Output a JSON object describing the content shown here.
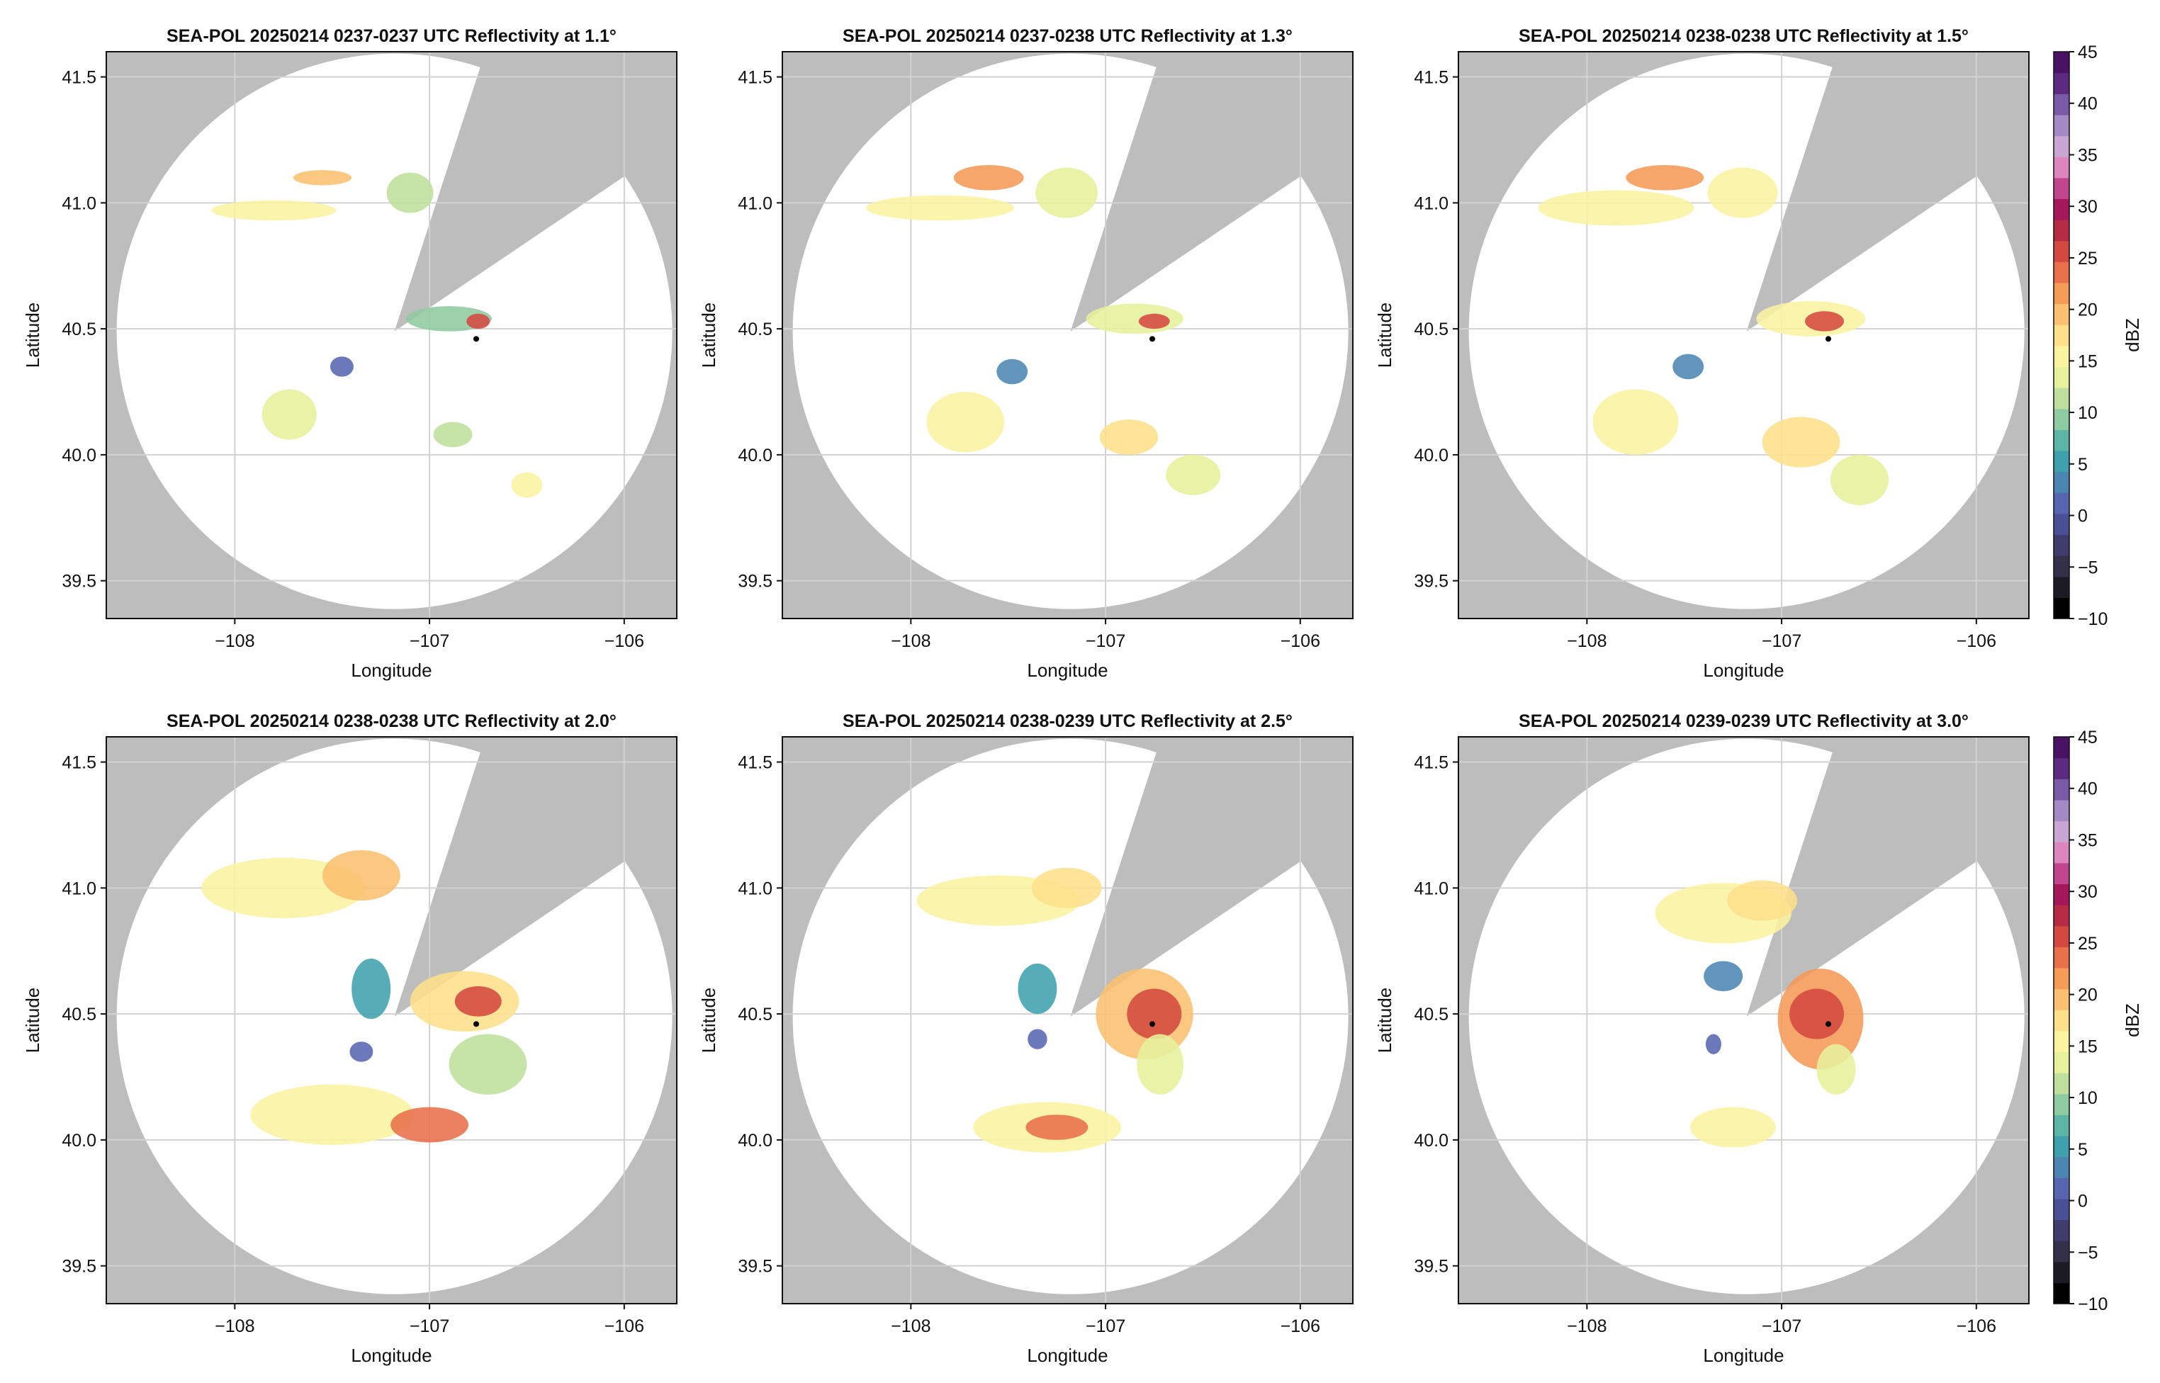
{
  "figure": {
    "colorbar": {
      "label": "dBZ",
      "range": [
        -10,
        45
      ],
      "ticks": [
        "−10",
        "−5",
        "0",
        "5",
        "10",
        "15",
        "20",
        "25",
        "30",
        "35",
        "40",
        "45"
      ],
      "colors": [
        "#000000",
        "#1c1a24",
        "#35304a",
        "#3e3d6e",
        "#4b4f96",
        "#5665b0",
        "#4b86b2",
        "#3fa1ad",
        "#5bb6a5",
        "#8fcba0",
        "#bfe09c",
        "#e6f19c",
        "#fbf3a0",
        "#fde08a",
        "#fbc06f",
        "#f59a57",
        "#e8704a",
        "#d4493f",
        "#b72a44",
        "#a4175a",
        "#c2468d",
        "#dd86bd",
        "#c9a6d2",
        "#a48ac4",
        "#7a5aa7",
        "#5c2a80",
        "#4a1264"
      ]
    },
    "background": {
      "outside_color": "#bdbdbd",
      "coverage_color": "#ffffff"
    }
  },
  "chart_data": [
    {
      "type": "heatmap",
      "title": "SEA-POL 20250214 0237-0237 UTC Reflectivity at 1.1°",
      "xlabel": "Longitude",
      "ylabel": "Latitude",
      "xlim": [
        -108.66,
        -105.73
      ],
      "ylim": [
        39.35,
        41.6
      ],
      "xticks": [
        "−108",
        "−107",
        "−106"
      ],
      "yticks": [
        "39.5",
        "40.0",
        "40.5",
        "41.0",
        "41.5"
      ],
      "grid": true,
      "radar_center": [
        -107.18,
        40.49
      ],
      "marker": [
        -106.76,
        40.46
      ],
      "echoes": [
        {
          "lon": -107.8,
          "lat": 40.97,
          "rlon": 0.32,
          "rlat": 0.04,
          "dbz": 15
        },
        {
          "lon": -107.55,
          "lat": 41.1,
          "rlon": 0.15,
          "rlat": 0.03,
          "dbz": 20
        },
        {
          "lon": -107.1,
          "lat": 41.04,
          "rlon": 0.12,
          "rlat": 0.08,
          "dbz": 12
        },
        {
          "lon": -106.9,
          "lat": 40.54,
          "rlon": 0.22,
          "rlat": 0.05,
          "dbz": 10
        },
        {
          "lon": -106.75,
          "lat": 40.53,
          "rlon": 0.06,
          "rlat": 0.03,
          "dbz": 25
        },
        {
          "lon": -107.72,
          "lat": 40.16,
          "rlon": 0.14,
          "rlat": 0.1,
          "dbz": 13
        },
        {
          "lon": -107.45,
          "lat": 40.35,
          "rlon": 0.06,
          "rlat": 0.04,
          "dbz": 2
        },
        {
          "lon": -106.88,
          "lat": 40.08,
          "rlon": 0.1,
          "rlat": 0.05,
          "dbz": 12
        },
        {
          "lon": -106.5,
          "lat": 39.88,
          "rlon": 0.08,
          "rlat": 0.05,
          "dbz": 15
        }
      ]
    },
    {
      "type": "heatmap",
      "title": "SEA-POL 20250214 0237-0238 UTC Reflectivity at 1.3°",
      "xlabel": "Longitude",
      "ylabel": "Latitude",
      "xlim": [
        -108.66,
        -105.73
      ],
      "ylim": [
        39.35,
        41.6
      ],
      "xticks": [
        "−108",
        "−107",
        "−106"
      ],
      "yticks": [
        "39.5",
        "40.0",
        "40.5",
        "41.0",
        "41.5"
      ],
      "grid": true,
      "radar_center": [
        -107.18,
        40.49
      ],
      "marker": [
        -106.76,
        40.46
      ],
      "echoes": [
        {
          "lon": -107.85,
          "lat": 40.98,
          "rlon": 0.38,
          "rlat": 0.05,
          "dbz": 16
        },
        {
          "lon": -107.6,
          "lat": 41.1,
          "rlon": 0.18,
          "rlat": 0.05,
          "dbz": 22
        },
        {
          "lon": -107.2,
          "lat": 41.04,
          "rlon": 0.16,
          "rlat": 0.1,
          "dbz": 14
        },
        {
          "lon": -106.85,
          "lat": 40.54,
          "rlon": 0.25,
          "rlat": 0.06,
          "dbz": 14
        },
        {
          "lon": -106.75,
          "lat": 40.53,
          "rlon": 0.08,
          "rlat": 0.03,
          "dbz": 26
        },
        {
          "lon": -107.72,
          "lat": 40.13,
          "rlon": 0.2,
          "rlat": 0.12,
          "dbz": 15
        },
        {
          "lon": -107.48,
          "lat": 40.33,
          "rlon": 0.08,
          "rlat": 0.05,
          "dbz": 3
        },
        {
          "lon": -106.88,
          "lat": 40.07,
          "rlon": 0.15,
          "rlat": 0.07,
          "dbz": 18
        },
        {
          "lon": -106.55,
          "lat": 39.92,
          "rlon": 0.14,
          "rlat": 0.08,
          "dbz": 14
        }
      ]
    },
    {
      "type": "heatmap",
      "title": "SEA-POL 20250214 0238-0238 UTC Reflectivity at 1.5°",
      "xlabel": "Longitude",
      "ylabel": "Latitude",
      "xlim": [
        -108.66,
        -105.73
      ],
      "ylim": [
        39.35,
        41.6
      ],
      "xticks": [
        "−108",
        "−107",
        "−106"
      ],
      "yticks": [
        "39.5",
        "40.0",
        "40.5",
        "41.0",
        "41.5"
      ],
      "grid": true,
      "radar_center": [
        -107.18,
        40.49
      ],
      "marker": [
        -106.76,
        40.46
      ],
      "echoes": [
        {
          "lon": -107.85,
          "lat": 40.98,
          "rlon": 0.4,
          "rlat": 0.07,
          "dbz": 16
        },
        {
          "lon": -107.6,
          "lat": 41.1,
          "rlon": 0.2,
          "rlat": 0.05,
          "dbz": 22
        },
        {
          "lon": -107.2,
          "lat": 41.04,
          "rlon": 0.18,
          "rlat": 0.1,
          "dbz": 15
        },
        {
          "lon": -106.85,
          "lat": 40.54,
          "rlon": 0.28,
          "rlat": 0.07,
          "dbz": 16
        },
        {
          "lon": -106.78,
          "lat": 40.53,
          "rlon": 0.1,
          "rlat": 0.04,
          "dbz": 26
        },
        {
          "lon": -107.75,
          "lat": 40.13,
          "rlon": 0.22,
          "rlat": 0.13,
          "dbz": 15
        },
        {
          "lon": -107.48,
          "lat": 40.35,
          "rlon": 0.08,
          "rlat": 0.05,
          "dbz": 3
        },
        {
          "lon": -106.9,
          "lat": 40.05,
          "rlon": 0.2,
          "rlat": 0.1,
          "dbz": 18
        },
        {
          "lon": -106.6,
          "lat": 39.9,
          "rlon": 0.15,
          "rlat": 0.1,
          "dbz": 14
        }
      ]
    },
    {
      "type": "heatmap",
      "title": "SEA-POL 20250214 0238-0238 UTC Reflectivity at 2.0°",
      "xlabel": "Longitude",
      "ylabel": "Latitude",
      "xlim": [
        -108.66,
        -105.73
      ],
      "ylim": [
        39.35,
        41.6
      ],
      "xticks": [
        "−108",
        "−107",
        "−106"
      ],
      "yticks": [
        "39.5",
        "40.0",
        "40.5",
        "41.0",
        "41.5"
      ],
      "grid": true,
      "radar_center": [
        -107.18,
        40.49
      ],
      "marker": [
        -106.76,
        40.46
      ],
      "echoes": [
        {
          "lon": -107.75,
          "lat": 41.0,
          "rlon": 0.42,
          "rlat": 0.12,
          "dbz": 16
        },
        {
          "lon": -107.35,
          "lat": 41.05,
          "rlon": 0.2,
          "rlat": 0.1,
          "dbz": 20
        },
        {
          "lon": -106.82,
          "lat": 40.55,
          "rlon": 0.28,
          "rlat": 0.12,
          "dbz": 18
        },
        {
          "lon": -106.75,
          "lat": 40.55,
          "rlon": 0.12,
          "rlat": 0.06,
          "dbz": 26
        },
        {
          "lon": -106.7,
          "lat": 40.3,
          "rlon": 0.2,
          "rlat": 0.12,
          "dbz": 12
        },
        {
          "lon": -107.5,
          "lat": 40.1,
          "rlon": 0.42,
          "rlat": 0.12,
          "dbz": 15
        },
        {
          "lon": -107.0,
          "lat": 40.06,
          "rlon": 0.2,
          "rlat": 0.07,
          "dbz": 24
        },
        {
          "lon": -107.3,
          "lat": 40.6,
          "rlon": 0.1,
          "rlat": 0.12,
          "dbz": 5
        },
        {
          "lon": -107.35,
          "lat": 40.35,
          "rlon": 0.06,
          "rlat": 0.04,
          "dbz": 2
        }
      ]
    },
    {
      "type": "heatmap",
      "title": "SEA-POL 20250214 0238-0239 UTC Reflectivity at 2.5°",
      "xlabel": "Longitude",
      "ylabel": "Latitude",
      "xlim": [
        -108.66,
        -105.73
      ],
      "ylim": [
        39.35,
        41.6
      ],
      "xticks": [
        "−108",
        "−107",
        "−106"
      ],
      "yticks": [
        "39.5",
        "40.0",
        "40.5",
        "41.0",
        "41.5"
      ],
      "grid": true,
      "radar_center": [
        -107.18,
        40.49
      ],
      "marker": [
        -106.76,
        40.46
      ],
      "echoes": [
        {
          "lon": -107.55,
          "lat": 40.95,
          "rlon": 0.42,
          "rlat": 0.1,
          "dbz": 15
        },
        {
          "lon": -107.2,
          "lat": 41.0,
          "rlon": 0.18,
          "rlat": 0.08,
          "dbz": 18
        },
        {
          "lon": -106.8,
          "lat": 40.5,
          "rlon": 0.25,
          "rlat": 0.18,
          "dbz": 20
        },
        {
          "lon": -106.75,
          "lat": 40.5,
          "rlon": 0.14,
          "rlat": 0.1,
          "dbz": 26
        },
        {
          "lon": -106.72,
          "lat": 40.3,
          "rlon": 0.12,
          "rlat": 0.12,
          "dbz": 14
        },
        {
          "lon": -107.3,
          "lat": 40.05,
          "rlon": 0.38,
          "rlat": 0.1,
          "dbz": 16
        },
        {
          "lon": -107.25,
          "lat": 40.05,
          "rlon": 0.16,
          "rlat": 0.05,
          "dbz": 24
        },
        {
          "lon": -107.35,
          "lat": 40.6,
          "rlon": 0.1,
          "rlat": 0.1,
          "dbz": 5
        },
        {
          "lon": -107.35,
          "lat": 40.4,
          "rlon": 0.05,
          "rlat": 0.04,
          "dbz": 2
        }
      ]
    },
    {
      "type": "heatmap",
      "title": "SEA-POL 20250214 0239-0239 UTC Reflectivity at 3.0°",
      "xlabel": "Longitude",
      "ylabel": "Latitude",
      "xlim": [
        -108.66,
        -105.73
      ],
      "ylim": [
        39.35,
        41.6
      ],
      "xticks": [
        "−108",
        "−107",
        "−106"
      ],
      "yticks": [
        "39.5",
        "40.0",
        "40.5",
        "41.0",
        "41.5"
      ],
      "grid": true,
      "radar_center": [
        -107.18,
        40.49
      ],
      "marker": [
        -106.76,
        40.46
      ],
      "echoes": [
        {
          "lon": -107.3,
          "lat": 40.9,
          "rlon": 0.35,
          "rlat": 0.12,
          "dbz": 15
        },
        {
          "lon": -107.1,
          "lat": 40.95,
          "rlon": 0.18,
          "rlat": 0.08,
          "dbz": 18
        },
        {
          "lon": -106.8,
          "lat": 40.48,
          "rlon": 0.22,
          "rlat": 0.2,
          "dbz": 22
        },
        {
          "lon": -106.82,
          "lat": 40.5,
          "rlon": 0.14,
          "rlat": 0.1,
          "dbz": 26
        },
        {
          "lon": -106.72,
          "lat": 40.28,
          "rlon": 0.1,
          "rlat": 0.1,
          "dbz": 14
        },
        {
          "lon": -107.25,
          "lat": 40.05,
          "rlon": 0.22,
          "rlat": 0.08,
          "dbz": 16
        },
        {
          "lon": -107.3,
          "lat": 40.65,
          "rlon": 0.1,
          "rlat": 0.06,
          "dbz": 4
        },
        {
          "lon": -107.35,
          "lat": 40.38,
          "rlon": 0.04,
          "rlat": 0.04,
          "dbz": 2
        }
      ]
    }
  ]
}
